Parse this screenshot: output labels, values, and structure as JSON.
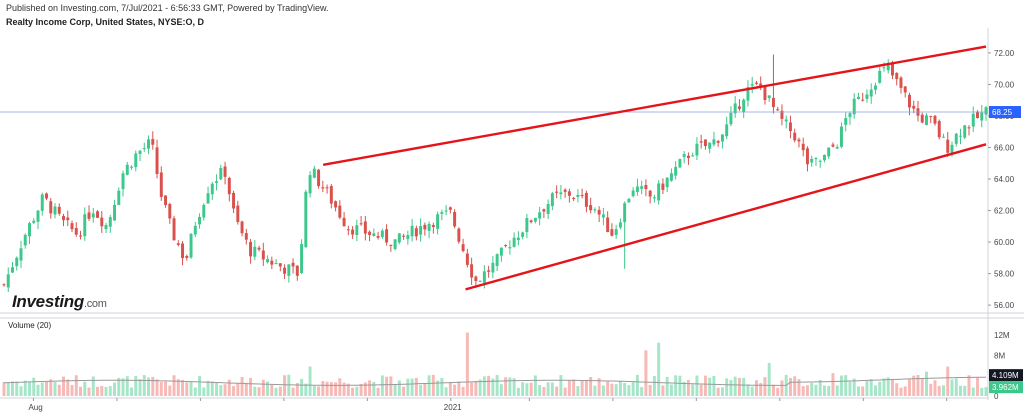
{
  "header": {
    "published": "Published on Investing.com, 7/Jul/2021 - 6:56:33 GMT, Powered by TradingView.",
    "instrument": "Realty Income Corp, United States, NYSE:O, D"
  },
  "logo": {
    "brand": "Investing",
    "domain": ".com"
  },
  "colors": {
    "up": "#3cc88c",
    "down": "#d9514c",
    "up_vol": "#a6e6c8",
    "down_vol": "#f6b9b6",
    "trend": "#e5141b",
    "price_line": "#8aa0d8",
    "badge": "#2962ff",
    "ma": "#999999"
  },
  "chart_data": [
    {
      "type": "candlestick",
      "y_axis": {
        "ticks": [
          "56.00",
          "58.00",
          "60.00",
          "62.00",
          "64.00",
          "66.00",
          "68.00",
          "70.00",
          "72.00"
        ],
        "ylim": [
          55.5,
          73.2
        ]
      },
      "x_axis": {
        "ticks": [
          "Aug",
          "2021"
        ]
      },
      "last_price": "68.25",
      "trendlines": [
        {
          "from": [
            0.325,
            64.9
          ],
          "to": [
            1.0,
            72.4
          ]
        },
        {
          "from": [
            0.47,
            57.0
          ],
          "to": [
            1.0,
            66.2
          ]
        }
      ],
      "anchors": [
        [
          0,
          57.3
        ],
        [
          0.02,
          60.3
        ],
        [
          0.04,
          62.8
        ],
        [
          0.06,
          61.2
        ],
        [
          0.075,
          60.5
        ],
        [
          0.09,
          62.2
        ],
        [
          0.105,
          61.0
        ],
        [
          0.12,
          64.3
        ],
        [
          0.135,
          65.6
        ],
        [
          0.15,
          66.3
        ],
        [
          0.16,
          63.0
        ],
        [
          0.17,
          60.8
        ],
        [
          0.185,
          58.8
        ],
        [
          0.195,
          61.3
        ],
        [
          0.21,
          63.8
        ],
        [
          0.225,
          64.5
        ],
        [
          0.235,
          61.5
        ],
        [
          0.25,
          59.5
        ],
        [
          0.265,
          59.0
        ],
        [
          0.28,
          58.5
        ],
        [
          0.3,
          58.0
        ],
        [
          0.31,
          64.8
        ],
        [
          0.33,
          63.0
        ],
        [
          0.35,
          61.0
        ],
        [
          0.375,
          60.5
        ],
        [
          0.4,
          60.0
        ],
        [
          0.42,
          60.8
        ],
        [
          0.44,
          61.5
        ],
        [
          0.455,
          61.8
        ],
        [
          0.465,
          60.0
        ],
        [
          0.48,
          57.5
        ],
        [
          0.5,
          58.6
        ],
        [
          0.515,
          60.0
        ],
        [
          0.53,
          61.0
        ],
        [
          0.545,
          62.0
        ],
        [
          0.56,
          62.8
        ],
        [
          0.575,
          63.1
        ],
        [
          0.6,
          62.3
        ],
        [
          0.62,
          60.5
        ],
        [
          0.64,
          63.5
        ],
        [
          0.66,
          62.8
        ],
        [
          0.68,
          64.3
        ],
        [
          0.7,
          65.8
        ],
        [
          0.72,
          66.2
        ],
        [
          0.735,
          67.2
        ],
        [
          0.755,
          69.6
        ],
        [
          0.77,
          69.9
        ],
        [
          0.79,
          67.8
        ],
        [
          0.805,
          66.8
        ],
        [
          0.82,
          64.8
        ],
        [
          0.835,
          65.3
        ],
        [
          0.85,
          66.5
        ],
        [
          0.86,
          68.3
        ],
        [
          0.875,
          69.3
        ],
        [
          0.89,
          70.6
        ],
        [
          0.9,
          71.0
        ],
        [
          0.915,
          69.5
        ],
        [
          0.93,
          68.0
        ],
        [
          0.945,
          67.6
        ],
        [
          0.96,
          66.0
        ],
        [
          0.975,
          67.2
        ],
        [
          1.0,
          68.25
        ]
      ],
      "spike_highs": [
        [
          0.782,
          71.9
        ],
        [
          0.63,
          58.3
        ]
      ]
    },
    {
      "type": "bar",
      "title": "Volume (20)",
      "y_axis": {
        "ticks": [
          "12M",
          "8M",
          "4M",
          "0"
        ],
        "ylim": [
          0,
          13
        ]
      },
      "last_volume": "4.109M",
      "volume_ma": "3.962M",
      "spikes": [
        [
          0.47,
          12.5
        ],
        [
          0.31,
          5.8
        ],
        [
          0.655,
          9.0
        ],
        [
          0.665,
          10.5
        ],
        [
          0.78,
          6.5
        ],
        [
          0.845,
          4.5
        ],
        [
          0.96,
          5.8
        ],
        [
          0.94,
          4.8
        ]
      ]
    }
  ]
}
